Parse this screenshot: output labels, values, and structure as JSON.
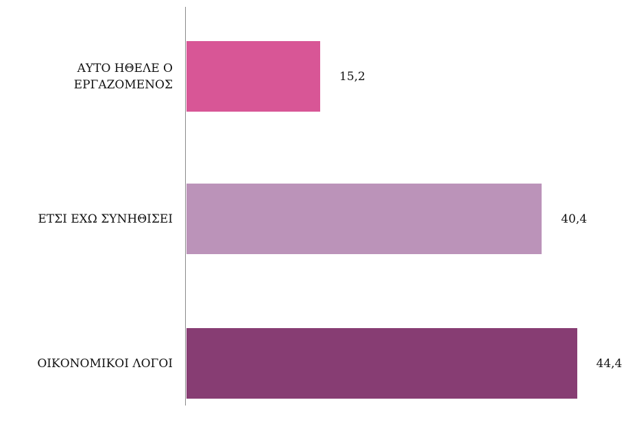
{
  "chart_data": {
    "type": "barh",
    "categories": [
      "ΑΥΤΟ ΗΘΕΛΕ Ο ΕΡΓΑΖΟΜΕΝΟΣ",
      "ΕΤΣΙ ΕΧΩ ΣΥΝΗΘΙΣΕΙ",
      "ΟΙΚΟΝΟΜΙΚΟΙ ΛΟΓΟΙ"
    ],
    "values": [
      15.2,
      40.4,
      44.4
    ],
    "value_labels": [
      "15,2",
      "40,4",
      "44,4"
    ],
    "colors": [
      "#d85696",
      "#bb93b9",
      "#873d73"
    ]
  }
}
